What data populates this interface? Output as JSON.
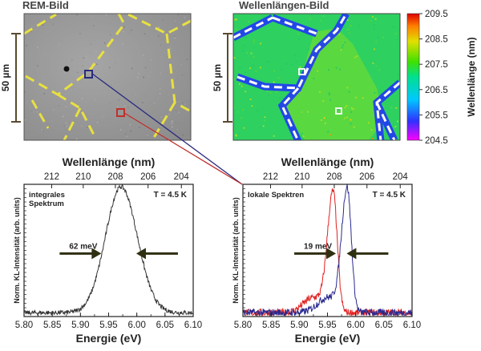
{
  "titles": {
    "sem": "REM-Bild",
    "wavelength_map": "Wellenlängen-Bild"
  },
  "scalebars": {
    "sem": "50 µm",
    "map": "50 µm"
  },
  "colorbar": {
    "label": "Wellenlänge (nm)",
    "ticks": [
      "209.5",
      "208.5",
      "207.5",
      "206.5",
      "205.5",
      "204.5"
    ],
    "range": [
      204.5,
      209.5
    ]
  },
  "colors": {
    "sem_marker": "#2a2a80",
    "local_marker": "#c0302c",
    "integral_line": "#333333",
    "red_spectrum": "#e02020",
    "blue_spectrum": "#2a2a90",
    "arrow": "#2f2f12",
    "gb": "#e8e040"
  },
  "chart_data": [
    {
      "type": "line",
      "title": "integrales Spektrum",
      "annotation_text": "integrales\nSpektrum",
      "lines": [
        "integrales",
        "Spektrum"
      ],
      "temperature": "T = 4.5 K",
      "fwhm_label": "62 meV",
      "xlabel": "Energie (eV)",
      "top_xlabel": "Wellenlänge (nm)",
      "ylabel": "Norm. KL-Intensität (arb. units)",
      "xlim": [
        5.8,
        6.1
      ],
      "ylim": [
        0,
        1.05
      ],
      "xticks": [
        "5.80",
        "5.85",
        "5.90",
        "5.95",
        "6.00",
        "6.05",
        "6.10"
      ],
      "top_ticks": [
        "212",
        "210",
        "208",
        "206",
        "204"
      ],
      "top_tick_energies": [
        5.849,
        5.905,
        5.962,
        6.02,
        6.079
      ],
      "fwhm_arrows_at": [
        5.937,
        5.999
      ],
      "series": [
        {
          "name": "integral",
          "peak": 5.972,
          "fwhm": 0.062,
          "amplitude": 1.0,
          "color": "#333333"
        }
      ]
    },
    {
      "type": "line",
      "title": "lokale Spektren",
      "temperature": "T = 4.5 K",
      "fwhm_label": "19 meV",
      "xlabel": "Energie (eV)",
      "top_xlabel": "Wellenlänge (nm)",
      "ylabel": "Norm. KL-Intensität (arb. units)",
      "xlim": [
        5.8,
        6.1
      ],
      "ylim": [
        0,
        1.05
      ],
      "xticks": [
        "5.80",
        "5.85",
        "5.90",
        "5.95",
        "6.00",
        "6.05",
        "6.10"
      ],
      "top_ticks": [
        "212",
        "210",
        "208",
        "206",
        "204"
      ],
      "top_tick_energies": [
        5.849,
        5.905,
        5.962,
        6.02,
        6.079
      ],
      "fwhm_arrows_at": [
        5.965,
        5.984
      ],
      "series": [
        {
          "name": "red local spectrum",
          "peak": 5.96,
          "fwhm": 0.019,
          "amplitude": 0.95,
          "color": "#e02020"
        },
        {
          "name": "blue local spectrum",
          "peak": 5.985,
          "fwhm": 0.019,
          "amplitude": 0.98,
          "color": "#2a2a90"
        }
      ]
    }
  ]
}
